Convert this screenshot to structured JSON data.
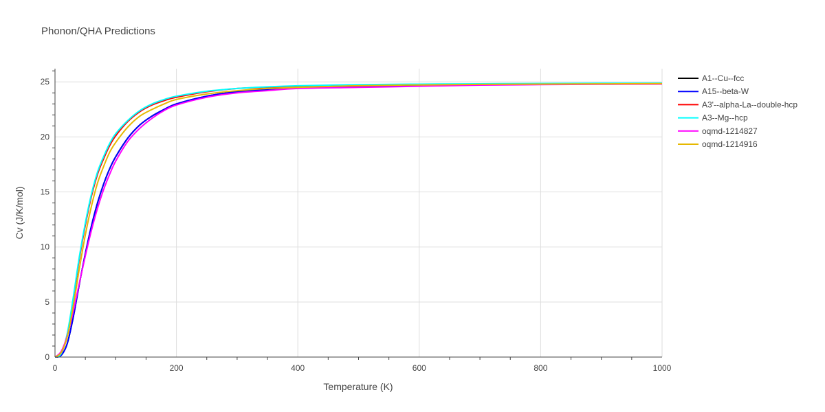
{
  "chart_data": {
    "type": "line",
    "title": "Phonon/QHA Predictions",
    "xlabel": "Temperature (K)",
    "ylabel": "Cv (J/K/mol)",
    "xlim": [
      0,
      1000
    ],
    "ylim": [
      0,
      26.2
    ],
    "xticks": [
      0,
      200,
      400,
      600,
      800,
      1000
    ],
    "yticks": [
      0,
      5,
      10,
      15,
      20,
      25
    ],
    "grid": true,
    "legend_position": "right",
    "x": [
      0,
      10,
      20,
      30,
      40,
      50,
      60,
      70,
      80,
      90,
      100,
      120,
      140,
      160,
      180,
      200,
      250,
      300,
      350,
      400,
      500,
      600,
      700,
      800,
      900,
      1000
    ],
    "series": [
      {
        "name": "A1--Cu--fcc",
        "color": "#000000",
        "values": [
          0,
          0.15,
          1.2,
          3.6,
          6.6,
          9.4,
          11.9,
          14.0,
          15.7,
          17.1,
          18.2,
          19.9,
          21.1,
          21.9,
          22.5,
          23.0,
          23.7,
          24.1,
          24.3,
          24.5,
          24.6,
          24.7,
          24.75,
          24.8,
          24.82,
          24.83
        ]
      },
      {
        "name": "A15--beta-W",
        "color": "#0000ff",
        "values": [
          0,
          0.15,
          1.2,
          3.6,
          6.6,
          9.4,
          11.9,
          14.0,
          15.7,
          17.1,
          18.2,
          19.9,
          21.1,
          21.9,
          22.5,
          23.0,
          23.7,
          24.1,
          24.3,
          24.5,
          24.6,
          24.7,
          24.75,
          24.8,
          24.82,
          24.83
        ]
      },
      {
        "name": "A3'--alpha-La--double-hcp",
        "color": "#ff0000",
        "values": [
          0,
          0.3,
          2.0,
          5.2,
          8.9,
          12.0,
          14.6,
          16.6,
          18.0,
          19.2,
          20.1,
          21.4,
          22.3,
          22.9,
          23.3,
          23.6,
          24.1,
          24.4,
          24.5,
          24.6,
          24.7,
          24.75,
          24.8,
          24.83,
          24.85,
          24.86
        ]
      },
      {
        "name": "A3--Mg--hcp",
        "color": "#00ffff",
        "values": [
          0,
          0.3,
          2.1,
          5.4,
          9.1,
          12.2,
          14.8,
          16.8,
          18.2,
          19.4,
          20.3,
          21.5,
          22.4,
          23.0,
          23.4,
          23.7,
          24.15,
          24.4,
          24.55,
          24.65,
          24.75,
          24.8,
          24.83,
          24.86,
          24.88,
          24.89
        ]
      },
      {
        "name": "oqmd-1214827",
        "color": "#ff00ff",
        "values": [
          0,
          0.5,
          1.9,
          4.1,
          6.7,
          9.2,
          11.5,
          13.5,
          15.2,
          16.6,
          17.8,
          19.6,
          20.8,
          21.7,
          22.4,
          22.9,
          23.6,
          24.0,
          24.2,
          24.4,
          24.5,
          24.6,
          24.7,
          24.75,
          24.78,
          24.8
        ]
      },
      {
        "name": "oqmd-1214916",
        "color": "#e6b800",
        "values": [
          0,
          0.4,
          1.8,
          4.6,
          8.0,
          11.1,
          13.7,
          15.8,
          17.3,
          18.6,
          19.5,
          20.9,
          21.9,
          22.5,
          23.0,
          23.4,
          23.9,
          24.2,
          24.4,
          24.5,
          24.65,
          24.72,
          24.77,
          24.8,
          24.82,
          24.84
        ]
      }
    ]
  }
}
